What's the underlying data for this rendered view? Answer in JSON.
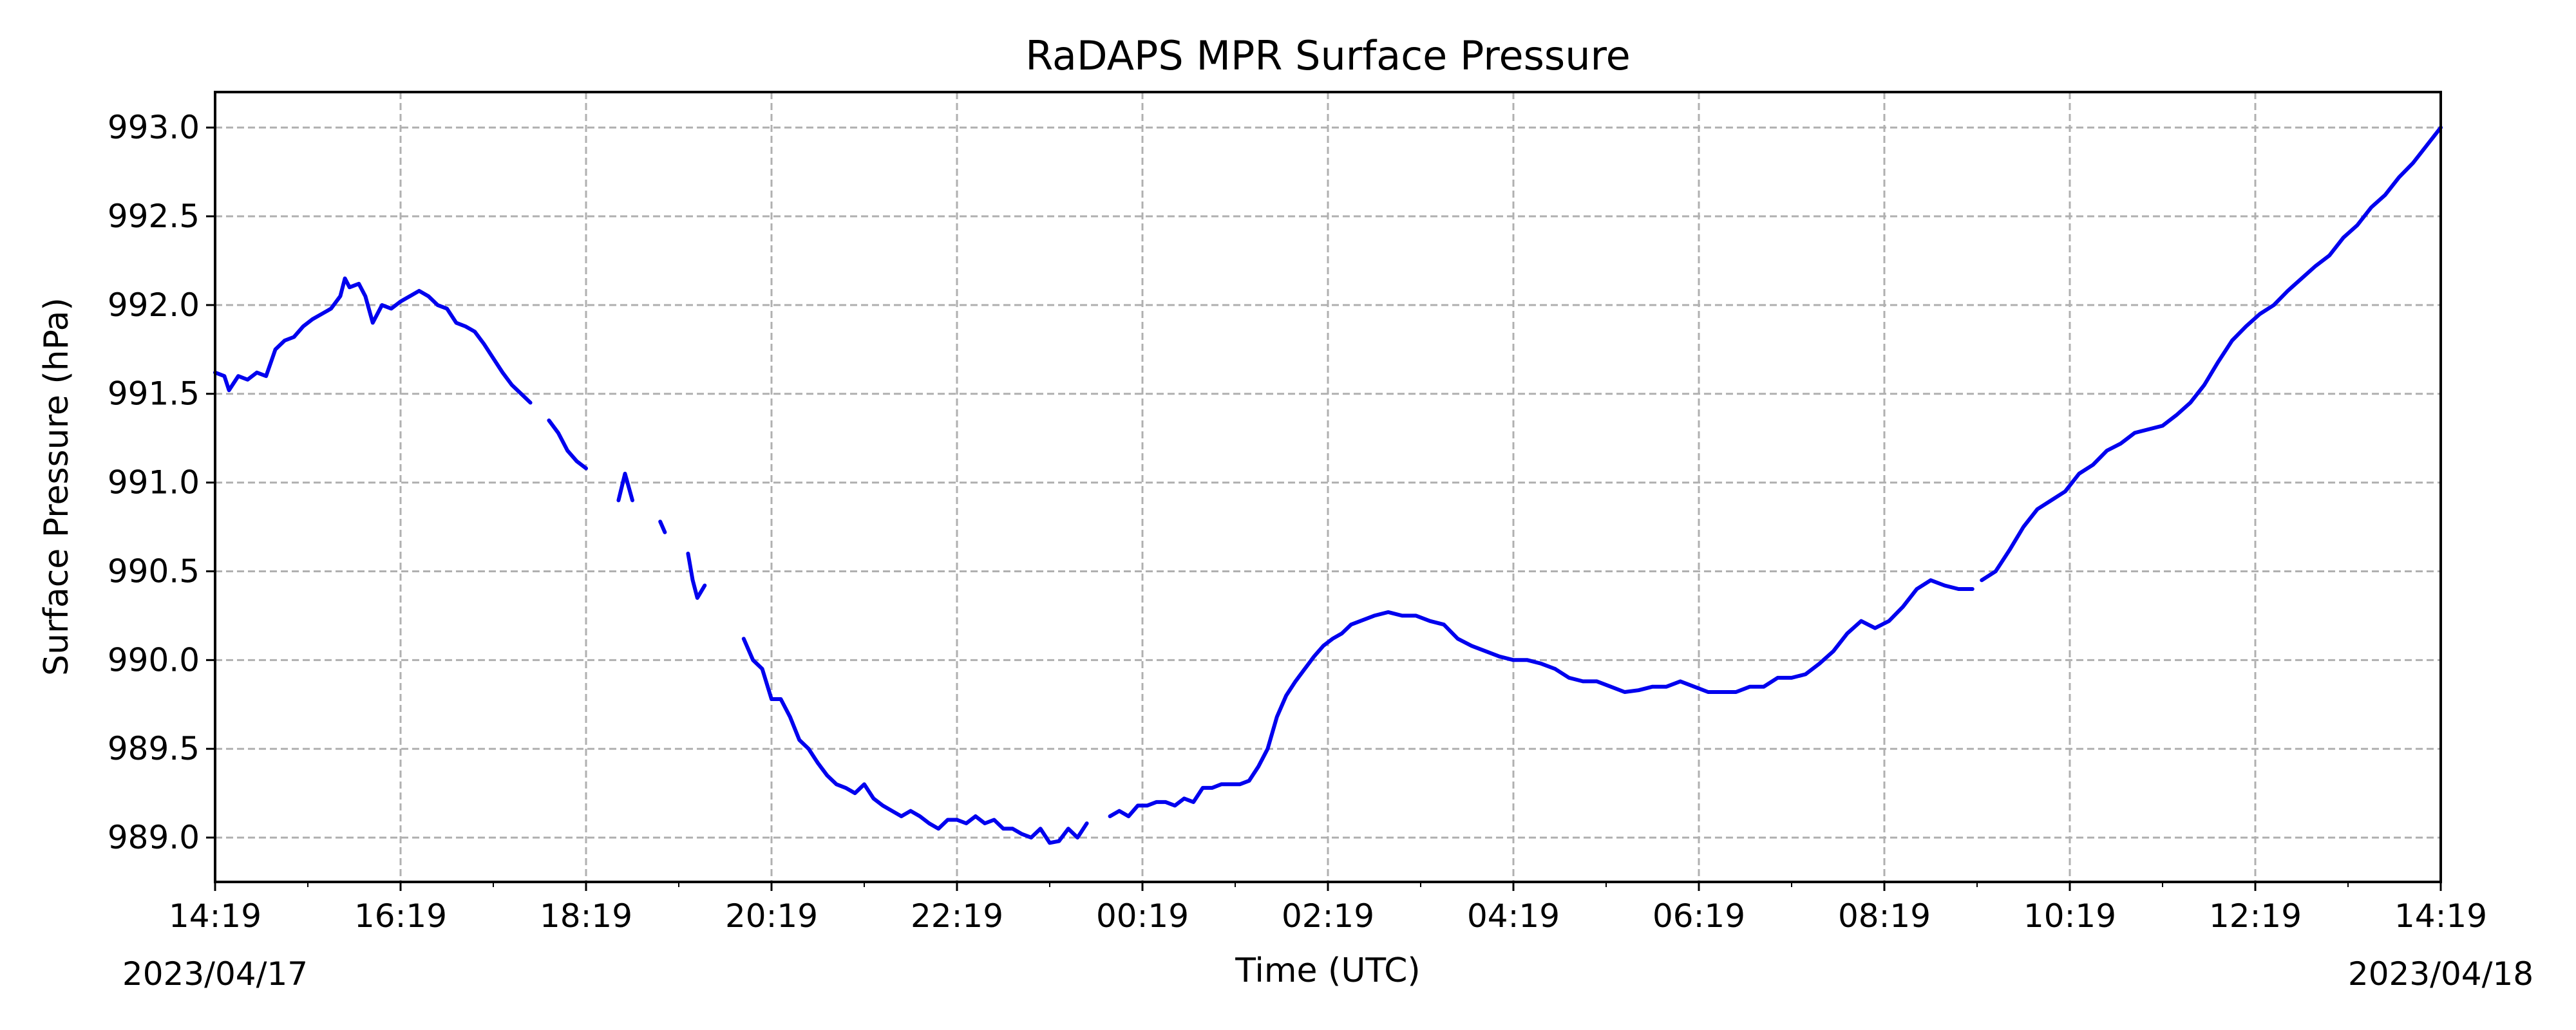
{
  "chart_data": {
    "type": "line",
    "title": "RaDAPS MPR Surface Pressure",
    "xlabel": "Time (UTC)",
    "ylabel": "Surface Pressure (hPa)",
    "x_unit": "hours after 2023/04/17 14:19 UTC",
    "xlim": [
      0,
      24
    ],
    "ylim": [
      988.75,
      993.2
    ],
    "x_ticks": [
      0,
      2,
      4,
      6,
      8,
      10,
      12,
      14,
      16,
      18,
      20,
      22,
      24
    ],
    "x_tick_labels": [
      "14:19",
      "16:19",
      "18:19",
      "20:19",
      "22:19",
      "00:19",
      "02:19",
      "04:19",
      "06:19",
      "08:19",
      "10:19",
      "12:19",
      "14:19"
    ],
    "x_date_labels": [
      "2023/04/17",
      "2023/04/18"
    ],
    "y_ticks": [
      989.0,
      989.5,
      990.0,
      990.5,
      991.0,
      991.5,
      992.0,
      992.5,
      993.0
    ],
    "y_tick_labels": [
      "989.0",
      "989.5",
      "990.0",
      "990.5",
      "991.0",
      "991.5",
      "992.0",
      "992.5",
      "993.0"
    ],
    "grid": true,
    "line_color": "#0000ee",
    "series": [
      {
        "segments": [
          [
            [
              0.0,
              991.62
            ],
            [
              0.1,
              991.6
            ],
            [
              0.15,
              991.52
            ],
            [
              0.25,
              991.6
            ],
            [
              0.35,
              991.58
            ],
            [
              0.45,
              991.62
            ],
            [
              0.55,
              991.6
            ],
            [
              0.65,
              991.75
            ],
            [
              0.75,
              991.8
            ],
            [
              0.85,
              991.82
            ],
            [
              0.95,
              991.88
            ],
            [
              1.05,
              991.92
            ],
            [
              1.15,
              991.95
            ],
            [
              1.25,
              991.98
            ],
            [
              1.35,
              992.05
            ],
            [
              1.4,
              992.15
            ],
            [
              1.45,
              992.1
            ],
            [
              1.55,
              992.12
            ],
            [
              1.62,
              992.05
            ],
            [
              1.7,
              991.9
            ],
            [
              1.8,
              992.0
            ],
            [
              1.9,
              991.98
            ],
            [
              2.0,
              992.02
            ],
            [
              2.1,
              992.05
            ],
            [
              2.2,
              992.08
            ],
            [
              2.3,
              992.05
            ],
            [
              2.4,
              992.0
            ],
            [
              2.5,
              991.98
            ],
            [
              2.6,
              991.9
            ],
            [
              2.7,
              991.88
            ],
            [
              2.8,
              991.85
            ],
            [
              2.9,
              991.78
            ],
            [
              3.0,
              991.7
            ],
            [
              3.1,
              991.62
            ],
            [
              3.2,
              991.55
            ],
            [
              3.3,
              991.5
            ],
            [
              3.4,
              991.45
            ]
          ],
          [
            [
              3.6,
              991.35
            ],
            [
              3.7,
              991.28
            ],
            [
              3.8,
              991.18
            ],
            [
              3.9,
              991.12
            ],
            [
              4.0,
              991.08
            ]
          ],
          [
            [
              4.35,
              990.9
            ],
            [
              4.42,
              991.05
            ],
            [
              4.5,
              990.9
            ]
          ],
          [
            [
              4.8,
              990.78
            ],
            [
              4.85,
              990.72
            ]
          ],
          [
            [
              5.1,
              990.6
            ],
            [
              5.15,
              990.45
            ],
            [
              5.2,
              990.35
            ],
            [
              5.28,
              990.42
            ]
          ],
          [
            [
              5.7,
              990.12
            ],
            [
              5.8,
              990.0
            ],
            [
              5.9,
              989.95
            ],
            [
              6.0,
              989.78
            ],
            [
              6.1,
              989.78
            ],
            [
              6.2,
              989.68
            ],
            [
              6.3,
              989.55
            ],
            [
              6.4,
              989.5
            ],
            [
              6.5,
              989.42
            ],
            [
              6.6,
              989.35
            ],
            [
              6.7,
              989.3
            ],
            [
              6.8,
              989.28
            ],
            [
              6.9,
              989.25
            ],
            [
              7.0,
              989.3
            ],
            [
              7.1,
              989.22
            ],
            [
              7.2,
              989.18
            ],
            [
              7.3,
              989.15
            ],
            [
              7.4,
              989.12
            ],
            [
              7.5,
              989.15
            ],
            [
              7.6,
              989.12
            ],
            [
              7.7,
              989.08
            ],
            [
              7.8,
              989.05
            ],
            [
              7.9,
              989.1
            ],
            [
              8.0,
              989.1
            ],
            [
              8.1,
              989.08
            ],
            [
              8.2,
              989.12
            ],
            [
              8.3,
              989.08
            ],
            [
              8.4,
              989.1
            ],
            [
              8.5,
              989.05
            ],
            [
              8.6,
              989.05
            ],
            [
              8.7,
              989.02
            ],
            [
              8.8,
              989.0
            ],
            [
              8.9,
              989.05
            ],
            [
              9.0,
              988.97
            ],
            [
              9.1,
              988.98
            ],
            [
              9.2,
              989.05
            ],
            [
              9.3,
              989.0
            ],
            [
              9.4,
              989.08
            ]
          ],
          [
            [
              9.65,
              989.12
            ],
            [
              9.75,
              989.15
            ],
            [
              9.85,
              989.12
            ],
            [
              9.95,
              989.18
            ],
            [
              10.05,
              989.18
            ],
            [
              10.15,
              989.2
            ],
            [
              10.25,
              989.2
            ],
            [
              10.35,
              989.18
            ],
            [
              10.45,
              989.22
            ],
            [
              10.55,
              989.2
            ],
            [
              10.65,
              989.28
            ],
            [
              10.75,
              989.28
            ],
            [
              10.85,
              989.3
            ],
            [
              10.95,
              989.3
            ],
            [
              11.05,
              989.3
            ],
            [
              11.15,
              989.32
            ],
            [
              11.25,
              989.4
            ],
            [
              11.35,
              989.5
            ],
            [
              11.45,
              989.68
            ],
            [
              11.55,
              989.8
            ],
            [
              11.65,
              989.88
            ],
            [
              11.75,
              989.95
            ],
            [
              11.85,
              990.02
            ],
            [
              11.95,
              990.08
            ],
            [
              12.05,
              990.12
            ],
            [
              12.15,
              990.15
            ],
            [
              12.25,
              990.2
            ],
            [
              12.35,
              990.22
            ],
            [
              12.5,
              990.25
            ],
            [
              12.65,
              990.27
            ],
            [
              12.8,
              990.25
            ],
            [
              12.95,
              990.25
            ],
            [
              13.1,
              990.22
            ],
            [
              13.25,
              990.2
            ],
            [
              13.4,
              990.12
            ],
            [
              13.55,
              990.08
            ],
            [
              13.7,
              990.05
            ],
            [
              13.85,
              990.02
            ],
            [
              14.0,
              990.0
            ],
            [
              14.15,
              990.0
            ],
            [
              14.3,
              989.98
            ],
            [
              14.45,
              989.95
            ],
            [
              14.6,
              989.9
            ],
            [
              14.75,
              989.88
            ],
            [
              14.9,
              989.88
            ],
            [
              15.05,
              989.85
            ],
            [
              15.2,
              989.82
            ],
            [
              15.35,
              989.83
            ],
            [
              15.5,
              989.85
            ],
            [
              15.65,
              989.85
            ],
            [
              15.8,
              989.88
            ],
            [
              15.95,
              989.85
            ],
            [
              16.1,
              989.82
            ],
            [
              16.25,
              989.82
            ],
            [
              16.4,
              989.82
            ],
            [
              16.55,
              989.85
            ],
            [
              16.7,
              989.85
            ],
            [
              16.85,
              989.9
            ],
            [
              17.0,
              989.9
            ],
            [
              17.15,
              989.92
            ],
            [
              17.3,
              989.98
            ],
            [
              17.45,
              990.05
            ],
            [
              17.6,
              990.15
            ],
            [
              17.75,
              990.22
            ],
            [
              17.9,
              990.18
            ],
            [
              18.05,
              990.22
            ],
            [
              18.2,
              990.3
            ],
            [
              18.35,
              990.4
            ],
            [
              18.5,
              990.45
            ],
            [
              18.65,
              990.42
            ],
            [
              18.8,
              990.4
            ],
            [
              18.95,
              990.4
            ]
          ],
          [
            [
              19.05,
              990.45
            ],
            [
              19.2,
              990.5
            ],
            [
              19.35,
              990.62
            ],
            [
              19.5,
              990.75
            ],
            [
              19.65,
              990.85
            ],
            [
              19.8,
              990.9
            ],
            [
              19.95,
              990.95
            ],
            [
              20.1,
              991.05
            ],
            [
              20.25,
              991.1
            ],
            [
              20.4,
              991.18
            ],
            [
              20.55,
              991.22
            ],
            [
              20.7,
              991.28
            ],
            [
              20.85,
              991.3
            ],
            [
              21.0,
              991.32
            ],
            [
              21.15,
              991.38
            ],
            [
              21.3,
              991.45
            ],
            [
              21.45,
              991.55
            ],
            [
              21.6,
              991.68
            ],
            [
              21.75,
              991.8
            ],
            [
              21.9,
              991.88
            ],
            [
              22.05,
              991.95
            ],
            [
              22.2,
              992.0
            ],
            [
              22.35,
              992.08
            ],
            [
              22.5,
              992.15
            ],
            [
              22.65,
              992.22
            ],
            [
              22.8,
              992.28
            ],
            [
              22.95,
              992.38
            ],
            [
              23.1,
              992.45
            ],
            [
              23.25,
              992.55
            ],
            [
              23.4,
              992.62
            ],
            [
              23.55,
              992.72
            ],
            [
              23.7,
              992.8
            ],
            [
              23.85,
              992.9
            ],
            [
              24.0,
              993.0
            ]
          ]
        ]
      }
    ]
  }
}
